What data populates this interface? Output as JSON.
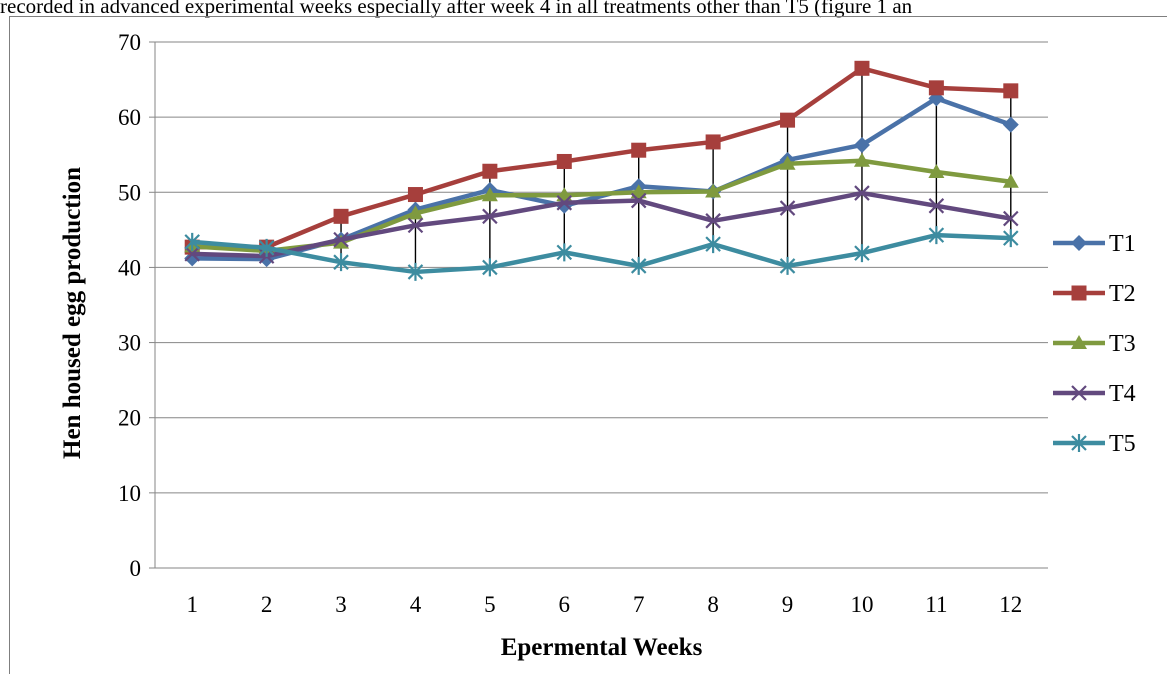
{
  "page_text": "recorded in advanced experimental weeks especially after week 4 in all treatments other than T5 (figure 1 an",
  "chart_data": {
    "type": "line",
    "xlabel": "Epermental Weeks",
    "ylabel": "Hen housed egg production",
    "categories": [
      "1",
      "2",
      "3",
      "4",
      "5",
      "6",
      "7",
      "8",
      "9",
      "10",
      "11",
      "12"
    ],
    "ylim": [
      0,
      70
    ],
    "yticks": [
      0,
      10,
      20,
      30,
      40,
      50,
      60,
      70
    ],
    "grid": "horizontal",
    "legend_position": "right",
    "series": [
      {
        "name": "T1",
        "color": "#4a72a8",
        "marker": "diamond",
        "values": [
          41.2,
          41.1,
          43.7,
          47.7,
          50.3,
          48.2,
          50.8,
          50.1,
          54.3,
          56.3,
          62.5,
          59.0
        ]
      },
      {
        "name": "T2",
        "color": "#a63f3c",
        "marker": "square",
        "values": [
          42.7,
          42.7,
          46.8,
          49.7,
          52.8,
          54.1,
          55.6,
          56.7,
          59.6,
          66.5,
          63.9,
          63.5
        ]
      },
      {
        "name": "T3",
        "color": "#7f9a3f",
        "marker": "triangle",
        "values": [
          42.8,
          42.2,
          43.3,
          47.2,
          49.6,
          49.6,
          50.0,
          50.1,
          53.8,
          54.2,
          52.7,
          51.4
        ]
      },
      {
        "name": "T4",
        "color": "#62497e",
        "marker": "x",
        "values": [
          41.8,
          41.5,
          43.7,
          45.6,
          46.8,
          48.6,
          48.9,
          46.2,
          47.9,
          49.9,
          48.2,
          46.5
        ]
      },
      {
        "name": "T5",
        "color": "#3d8ca0",
        "marker": "asterisk",
        "values": [
          43.4,
          42.6,
          40.7,
          39.4,
          40.0,
          42.0,
          40.2,
          43.1,
          40.2,
          41.9,
          44.3,
          43.9
        ]
      }
    ]
  }
}
